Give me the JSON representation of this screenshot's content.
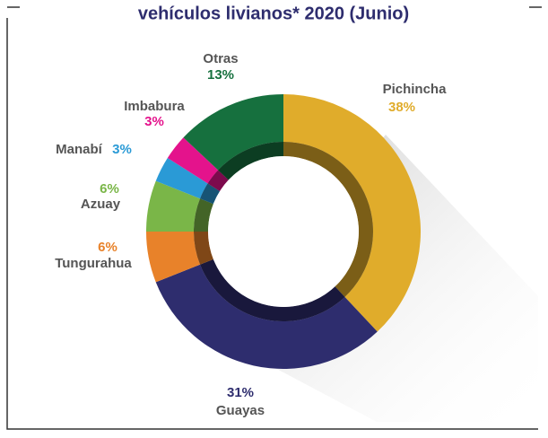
{
  "chart_data": {
    "type": "donut",
    "title": "vehículos livianos* 2020 (Junio)",
    "categories": [
      "Pichincha",
      "Guayas",
      "Tungurahua",
      "Azuay",
      "Manabí",
      "Imbabura",
      "Otras"
    ],
    "values": [
      38,
      31,
      6,
      6,
      3,
      3,
      13
    ],
    "value_labels": [
      "38%",
      "31%",
      "6%",
      "6%",
      "3%",
      "3%",
      "13%"
    ],
    "colors": [
      "#e0ac2b",
      "#2e2d6e",
      "#e8822a",
      "#7ab648",
      "#2a9ad6",
      "#e4138c",
      "#16703e"
    ]
  }
}
